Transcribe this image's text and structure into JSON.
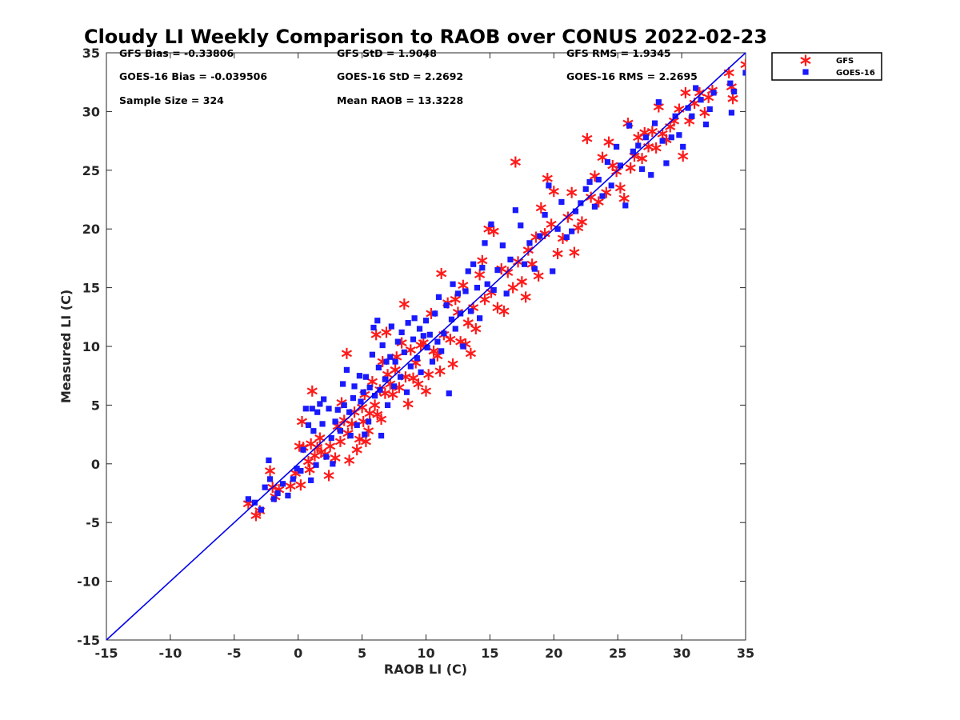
{
  "chart_data": {
    "type": "scatter",
    "title": "Cloudy LI Weekly Comparison to RAOB over CONUS 2022-02-23",
    "xlabel": "RAOB LI (C)",
    "ylabel": "Measured LI (C)",
    "xlim": [
      -15,
      35
    ],
    "ylim": [
      -15,
      35
    ],
    "xticks": [
      -15,
      -10,
      -5,
      0,
      5,
      10,
      15,
      20,
      25,
      30,
      35
    ],
    "yticks": [
      -15,
      -10,
      -5,
      0,
      5,
      10,
      15,
      20,
      25,
      30,
      35
    ],
    "grid": false,
    "legend_position": "outside-top-right",
    "reference_line": {
      "x": [
        -15,
        35
      ],
      "y": [
        -15,
        35
      ],
      "color": "#0000ee"
    },
    "stats": [
      [
        "GFS Bias = -0.33806",
        "GFS StD = 1.9048",
        "GFS RMS = 1.9345"
      ],
      [
        "GOES-16 Bias = -0.039506",
        "GOES-16 StD = 2.2692",
        "GOES-16 RMS = 2.2695"
      ],
      [
        "Sample Size = 324",
        "Mean RAOB = 13.3228",
        ""
      ]
    ],
    "series": [
      {
        "name": "GFS",
        "marker": "asterisk",
        "color": "#ff1a1a",
        "points": [
          [
            -3.9,
            -3.4
          ],
          [
            -3.3,
            -4.4
          ],
          [
            -3.0,
            -4.0
          ],
          [
            -2.2,
            -0.6
          ],
          [
            -2.0,
            -2.0
          ],
          [
            -1.8,
            -2.8
          ],
          [
            -1.5,
            -2.2
          ],
          [
            -0.6,
            -1.9
          ],
          [
            -0.2,
            -0.8
          ],
          [
            0.2,
            -1.8
          ],
          [
            0.1,
            1.5
          ],
          [
            0.4,
            1.4
          ],
          [
            0.3,
            3.6
          ],
          [
            0.8,
            0.2
          ],
          [
            0.9,
            -0.5
          ],
          [
            1.0,
            1.7
          ],
          [
            1.1,
            6.2
          ],
          [
            1.3,
            0.7
          ],
          [
            1.5,
            1.4
          ],
          [
            1.7,
            2.2
          ],
          [
            1.8,
            1.0
          ],
          [
            2.1,
            0.8
          ],
          [
            2.4,
            -1.0
          ],
          [
            2.5,
            1.5
          ],
          [
            2.9,
            0.5
          ],
          [
            3.1,
            3.2
          ],
          [
            3.3,
            1.9
          ],
          [
            3.4,
            5.2
          ],
          [
            3.6,
            3.7
          ],
          [
            3.8,
            9.4
          ],
          [
            3.9,
            2.6
          ],
          [
            4.0,
            0.3
          ],
          [
            4.2,
            3.4
          ],
          [
            4.4,
            4.4
          ],
          [
            4.6,
            1.2
          ],
          [
            4.8,
            2.1
          ],
          [
            5.0,
            4.8
          ],
          [
            5.1,
            3.6
          ],
          [
            5.2,
            5.9
          ],
          [
            5.3,
            1.9
          ],
          [
            5.5,
            2.8
          ],
          [
            5.6,
            4.3
          ],
          [
            5.8,
            7.0
          ],
          [
            6.0,
            5.0
          ],
          [
            6.1,
            11.0
          ],
          [
            6.2,
            4.2
          ],
          [
            6.4,
            6.3
          ],
          [
            6.5,
            3.8
          ],
          [
            6.6,
            8.7
          ],
          [
            6.8,
            6.0
          ],
          [
            6.9,
            11.2
          ],
          [
            7.0,
            7.6
          ],
          [
            7.2,
            6.8
          ],
          [
            7.4,
            5.9
          ],
          [
            7.6,
            8.0
          ],
          [
            7.7,
            9.1
          ],
          [
            7.9,
            6.5
          ],
          [
            8.1,
            10.3
          ],
          [
            8.3,
            13.6
          ],
          [
            8.4,
            7.4
          ],
          [
            8.6,
            5.1
          ],
          [
            8.8,
            9.7
          ],
          [
            9.0,
            7.3
          ],
          [
            9.2,
            8.6
          ],
          [
            9.4,
            6.8
          ],
          [
            9.6,
            10.1
          ],
          [
            9.8,
            10.3
          ],
          [
            10.0,
            6.2
          ],
          [
            10.2,
            7.6
          ],
          [
            10.4,
            12.8
          ],
          [
            10.6,
            9.6
          ],
          [
            10.9,
            9.2
          ],
          [
            11.1,
            7.9
          ],
          [
            11.2,
            16.2
          ],
          [
            11.4,
            11.0
          ],
          [
            11.7,
            13.7
          ],
          [
            11.9,
            10.6
          ],
          [
            12.1,
            8.5
          ],
          [
            12.3,
            14.0
          ],
          [
            12.5,
            12.9
          ],
          [
            12.7,
            10.4
          ],
          [
            12.9,
            15.2
          ],
          [
            13.1,
            10.2
          ],
          [
            13.3,
            12.0
          ],
          [
            13.5,
            9.4
          ],
          [
            13.7,
            13.3
          ],
          [
            13.9,
            11.5
          ],
          [
            14.2,
            16.1
          ],
          [
            14.4,
            17.3
          ],
          [
            14.6,
            14.0
          ],
          [
            14.9,
            20.0
          ],
          [
            15.1,
            14.6
          ],
          [
            15.3,
            19.8
          ],
          [
            15.6,
            13.3
          ],
          [
            15.9,
            16.6
          ],
          [
            16.1,
            13.0
          ],
          [
            16.4,
            16.3
          ],
          [
            16.8,
            15.0
          ],
          [
            17.0,
            25.7
          ],
          [
            17.2,
            17.2
          ],
          [
            17.5,
            15.5
          ],
          [
            17.8,
            14.2
          ],
          [
            18.0,
            18.2
          ],
          [
            18.3,
            17.0
          ],
          [
            18.6,
            19.3
          ],
          [
            18.8,
            16.0
          ],
          [
            19.0,
            21.8
          ],
          [
            19.3,
            19.6
          ],
          [
            19.5,
            24.3
          ],
          [
            19.8,
            20.4
          ],
          [
            20.0,
            23.2
          ],
          [
            20.3,
            17.9
          ],
          [
            20.7,
            19.2
          ],
          [
            21.1,
            21.0
          ],
          [
            21.4,
            23.1
          ],
          [
            21.6,
            18.0
          ],
          [
            21.9,
            20.1
          ],
          [
            22.2,
            20.6
          ],
          [
            22.6,
            27.7
          ],
          [
            22.9,
            22.7
          ],
          [
            23.2,
            24.5
          ],
          [
            23.5,
            22.3
          ],
          [
            23.8,
            26.1
          ],
          [
            24.1,
            23.1
          ],
          [
            24.3,
            27.4
          ],
          [
            24.6,
            25.4
          ],
          [
            24.9,
            24.9
          ],
          [
            25.2,
            23.5
          ],
          [
            25.5,
            22.6
          ],
          [
            25.8,
            29.0
          ],
          [
            26.0,
            25.2
          ],
          [
            26.3,
            26.2
          ],
          [
            26.6,
            27.8
          ],
          [
            26.9,
            26.0
          ],
          [
            27.1,
            28.2
          ],
          [
            27.4,
            27.0
          ],
          [
            27.7,
            28.3
          ],
          [
            28.0,
            26.9
          ],
          [
            28.2,
            30.4
          ],
          [
            28.5,
            28.1
          ],
          [
            28.8,
            27.6
          ],
          [
            29.1,
            28.7
          ],
          [
            29.4,
            29.2
          ],
          [
            29.8,
            30.2
          ],
          [
            30.1,
            26.2
          ],
          [
            30.3,
            31.6
          ],
          [
            30.6,
            29.2
          ],
          [
            31.0,
            30.7
          ],
          [
            31.4,
            31.6
          ],
          [
            31.8,
            29.9
          ],
          [
            32.1,
            31.2
          ],
          [
            32.4,
            31.8
          ],
          [
            33.7,
            33.3
          ],
          [
            33.9,
            32.1
          ],
          [
            34.0,
            31.1
          ],
          [
            35.0,
            34.0
          ]
        ]
      },
      {
        "name": "GOES-16",
        "marker": "square",
        "color": "#1a1aff",
        "points": [
          [
            -3.9,
            -3.0
          ],
          [
            -3.4,
            -3.3
          ],
          [
            -2.9,
            -3.9
          ],
          [
            -2.6,
            -2.0
          ],
          [
            -2.3,
            0.3
          ],
          [
            -2.2,
            -1.3
          ],
          [
            -1.9,
            -3.0
          ],
          [
            -1.6,
            -2.5
          ],
          [
            -1.2,
            -1.7
          ],
          [
            -0.8,
            -2.7
          ],
          [
            -0.4,
            -1.3
          ],
          [
            -0.1,
            -0.4
          ],
          [
            0.2,
            -0.6
          ],
          [
            0.4,
            1.2
          ],
          [
            0.6,
            4.7
          ],
          [
            0.8,
            3.3
          ],
          [
            1.0,
            -1.4
          ],
          [
            1.1,
            4.7
          ],
          [
            1.2,
            2.8
          ],
          [
            1.4,
            -0.1
          ],
          [
            1.5,
            4.4
          ],
          [
            1.7,
            5.1
          ],
          [
            1.9,
            3.4
          ],
          [
            2.0,
            5.5
          ],
          [
            2.2,
            0.6
          ],
          [
            2.4,
            4.7
          ],
          [
            2.6,
            2.2
          ],
          [
            2.7,
            0.0
          ],
          [
            2.9,
            3.6
          ],
          [
            3.1,
            4.6
          ],
          [
            3.3,
            2.8
          ],
          [
            3.5,
            6.8
          ],
          [
            3.6,
            5.0
          ],
          [
            3.8,
            8.0
          ],
          [
            4.0,
            4.4
          ],
          [
            4.1,
            2.4
          ],
          [
            4.3,
            5.6
          ],
          [
            4.4,
            6.6
          ],
          [
            4.6,
            3.3
          ],
          [
            4.8,
            7.5
          ],
          [
            4.9,
            5.3
          ],
          [
            5.1,
            6.1
          ],
          [
            5.2,
            2.5
          ],
          [
            5.3,
            7.4
          ],
          [
            5.5,
            3.6
          ],
          [
            5.6,
            6.5
          ],
          [
            5.8,
            9.3
          ],
          [
            5.9,
            11.6
          ],
          [
            6.0,
            5.8
          ],
          [
            6.2,
            12.2
          ],
          [
            6.3,
            8.2
          ],
          [
            6.4,
            6.3
          ],
          [
            6.5,
            2.4
          ],
          [
            6.6,
            10.1
          ],
          [
            6.8,
            7.2
          ],
          [
            6.9,
            8.7
          ],
          [
            7.0,
            5.0
          ],
          [
            7.2,
            9.1
          ],
          [
            7.3,
            11.7
          ],
          [
            7.5,
            6.6
          ],
          [
            7.6,
            8.7
          ],
          [
            7.8,
            10.4
          ],
          [
            8.0,
            7.4
          ],
          [
            8.1,
            11.2
          ],
          [
            8.3,
            9.5
          ],
          [
            8.5,
            6.1
          ],
          [
            8.6,
            12.0
          ],
          [
            8.8,
            8.3
          ],
          [
            9.0,
            10.6
          ],
          [
            9.1,
            12.4
          ],
          [
            9.3,
            9.0
          ],
          [
            9.5,
            11.5
          ],
          [
            9.6,
            7.8
          ],
          [
            9.8,
            10.9
          ],
          [
            10.0,
            12.2
          ],
          [
            10.1,
            9.9
          ],
          [
            10.3,
            11.0
          ],
          [
            10.5,
            8.7
          ],
          [
            10.7,
            12.8
          ],
          [
            10.9,
            10.4
          ],
          [
            11.0,
            14.2
          ],
          [
            11.2,
            9.6
          ],
          [
            11.4,
            11.1
          ],
          [
            11.6,
            13.5
          ],
          [
            11.8,
            6.0
          ],
          [
            12.0,
            12.3
          ],
          [
            12.1,
            15.3
          ],
          [
            12.3,
            11.5
          ],
          [
            12.5,
            14.5
          ],
          [
            12.7,
            12.8
          ],
          [
            12.9,
            10.0
          ],
          [
            13.1,
            14.7
          ],
          [
            13.3,
            16.4
          ],
          [
            13.5,
            13.0
          ],
          [
            13.7,
            17.0
          ],
          [
            14.0,
            15.0
          ],
          [
            14.2,
            12.4
          ],
          [
            14.4,
            16.7
          ],
          [
            14.6,
            18.8
          ],
          [
            14.8,
            15.3
          ],
          [
            15.1,
            20.4
          ],
          [
            15.3,
            14.8
          ],
          [
            15.6,
            16.5
          ],
          [
            16.0,
            18.6
          ],
          [
            16.3,
            14.5
          ],
          [
            16.6,
            17.4
          ],
          [
            17.0,
            21.6
          ],
          [
            17.4,
            20.3
          ],
          [
            17.7,
            17.0
          ],
          [
            18.1,
            18.8
          ],
          [
            18.5,
            16.6
          ],
          [
            18.9,
            19.4
          ],
          [
            19.3,
            21.2
          ],
          [
            19.6,
            23.7
          ],
          [
            19.9,
            16.4
          ],
          [
            20.3,
            20.0
          ],
          [
            20.6,
            22.3
          ],
          [
            21.0,
            19.3
          ],
          [
            21.4,
            19.8
          ],
          [
            21.7,
            21.5
          ],
          [
            22.1,
            22.2
          ],
          [
            22.5,
            23.4
          ],
          [
            22.8,
            24.0
          ],
          [
            23.2,
            21.9
          ],
          [
            23.5,
            24.2
          ],
          [
            23.8,
            22.8
          ],
          [
            24.2,
            25.7
          ],
          [
            24.5,
            23.7
          ],
          [
            24.9,
            27.0
          ],
          [
            25.2,
            25.4
          ],
          [
            25.6,
            22.0
          ],
          [
            25.9,
            28.8
          ],
          [
            26.2,
            26.6
          ],
          [
            26.6,
            27.1
          ],
          [
            26.9,
            25.1
          ],
          [
            27.2,
            27.8
          ],
          [
            27.6,
            24.6
          ],
          [
            27.9,
            29.0
          ],
          [
            28.2,
            30.8
          ],
          [
            28.5,
            27.5
          ],
          [
            28.8,
            25.6
          ],
          [
            29.2,
            27.8
          ],
          [
            29.5,
            29.6
          ],
          [
            29.8,
            28.0
          ],
          [
            30.1,
            27.0
          ],
          [
            30.5,
            30.3
          ],
          [
            30.8,
            29.6
          ],
          [
            31.1,
            32.0
          ],
          [
            31.5,
            31.0
          ],
          [
            31.9,
            28.9
          ],
          [
            32.2,
            30.2
          ],
          [
            32.5,
            31.6
          ],
          [
            33.8,
            32.4
          ],
          [
            33.9,
            29.9
          ],
          [
            34.1,
            31.7
          ],
          [
            35.0,
            33.3
          ]
        ]
      }
    ]
  }
}
